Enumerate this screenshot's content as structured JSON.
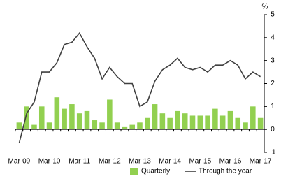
{
  "chart_data": {
    "type": "bar-line",
    "unit": "%",
    "categories": [
      "Mar-09",
      null,
      null,
      null,
      "Mar-10",
      null,
      null,
      null,
      "Mar-11",
      null,
      null,
      null,
      "Mar-12",
      null,
      null,
      null,
      "Mar-13",
      null,
      null,
      null,
      "Mar-14",
      null,
      null,
      null,
      "Mar-15",
      null,
      null,
      null,
      "Mar-16",
      null,
      null,
      null,
      "Mar-17"
    ],
    "series": [
      {
        "name": "Quarterly",
        "type": "bar",
        "color": "#92d050",
        "values": [
          0.3,
          1.0,
          0.2,
          1.0,
          0.3,
          1.4,
          0.9,
          1.1,
          0.7,
          0.8,
          0.4,
          0.3,
          1.3,
          0.3,
          0.1,
          0.2,
          0.3,
          0.5,
          1.1,
          0.7,
          0.5,
          0.8,
          0.7,
          0.6,
          0.6,
          0.6,
          0.9,
          0.6,
          0.8,
          0.5,
          0.3,
          1.0,
          0.5
        ]
      },
      {
        "name": "Through the year",
        "type": "line",
        "color": "#404040",
        "values": [
          -0.6,
          0.7,
          1.2,
          2.5,
          2.5,
          2.9,
          3.7,
          3.8,
          4.2,
          3.6,
          3.1,
          2.2,
          2.7,
          2.3,
          2.0,
          2.0,
          1.0,
          1.2,
          2.1,
          2.6,
          2.8,
          3.1,
          2.7,
          2.6,
          2.7,
          2.5,
          2.8,
          2.8,
          3.0,
          2.8,
          2.2,
          2.5,
          2.3
        ]
      }
    ],
    "ylim": [
      -1,
      5
    ],
    "yticks": [
      -1,
      0,
      1,
      2,
      3,
      4,
      5
    ],
    "grid": false
  }
}
